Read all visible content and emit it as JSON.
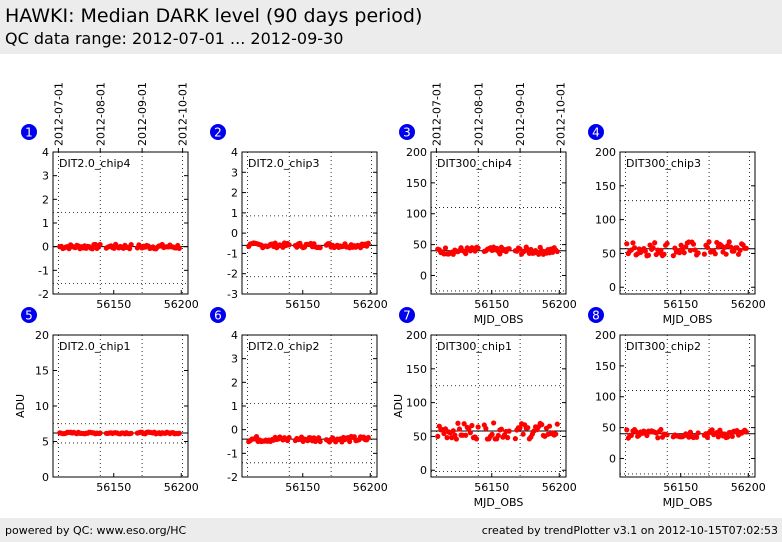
{
  "header": {
    "title": "HAWKI: Median DARK level (90 days period)",
    "subtitle": "QC data range: 2012-07-01 ... 2012-09-30"
  },
  "footer": {
    "left": "powered by QC: www.eso.org/HC",
    "right": "created by trendPlotter v3.1 on 2012-10-15T07:02:53"
  },
  "colors": {
    "points": "#ff0000",
    "badge": "#0000ee",
    "median_line": "#000000"
  },
  "top_date_ticks": [
    "2012-07-01",
    "2012-08-01",
    "2012-09-01",
    "2012-10-01"
  ],
  "chart_data": [
    {
      "type": "scatter",
      "badge": "1",
      "label": "DIT2.0_chip4",
      "xlim": [
        56105,
        56205
      ],
      "ylim": [
        -2,
        4
      ],
      "yticks": [
        "-2",
        "-1",
        "0",
        "1",
        "2",
        "3",
        "4"
      ],
      "xticks": [
        "56150",
        "56200"
      ],
      "xlabel": "",
      "ylabel": "",
      "median": 0.0,
      "limits": [
        1.45,
        -1.55
      ],
      "spread": 0.1,
      "has_date_axis": true
    },
    {
      "type": "scatter",
      "badge": "2",
      "label": "DIT2.0_chip3",
      "xlim": [
        56105,
        56205
      ],
      "ylim": [
        -3,
        4
      ],
      "yticks": [
        "-3",
        "-2",
        "-1",
        "0",
        "1",
        "2",
        "3",
        "4"
      ],
      "xticks": [
        "56150",
        "56200"
      ],
      "xlabel": "",
      "ylabel": "",
      "median": -0.6,
      "limits": [
        0.85,
        -2.15
      ],
      "spread": 0.12,
      "has_date_axis": false
    },
    {
      "type": "scatter",
      "badge": "3",
      "label": "DIT300_chip4",
      "xlim": [
        56105,
        56205
      ],
      "ylim": [
        -30,
        200
      ],
      "yticks": [
        "0",
        "50",
        "100",
        "150",
        "200"
      ],
      "xticks": [
        "56150",
        "56200"
      ],
      "xlabel": "MJD_OBS",
      "ylabel": "",
      "median": 40,
      "limits": [
        110,
        -25
      ],
      "spread": 6,
      "has_date_axis": true
    },
    {
      "type": "scatter",
      "badge": "4",
      "label": "DIT300_chip3",
      "xlim": [
        56105,
        56205
      ],
      "ylim": [
        -10,
        200
      ],
      "yticks": [
        "0",
        "50",
        "100",
        "150",
        "200"
      ],
      "xticks": [
        "56150",
        "56200"
      ],
      "xlabel": "MJD_OBS",
      "ylabel": "",
      "median": 57,
      "limits": [
        128,
        -5
      ],
      "spread": 11,
      "has_date_axis": false
    },
    {
      "type": "scatter",
      "badge": "5",
      "label": "DIT2.0_chip1",
      "xlim": [
        56105,
        56205
      ],
      "ylim": [
        0,
        20
      ],
      "yticks": [
        "0",
        "5",
        "10",
        "15",
        "20"
      ],
      "xticks": [
        "56150",
        "56200"
      ],
      "xlabel": "",
      "ylabel": "ADU",
      "median": 6.2,
      "limits": [
        7.5,
        4.8
      ],
      "spread": 0.12,
      "has_date_axis": false
    },
    {
      "type": "scatter",
      "badge": "6",
      "label": "DIT2.0_chip2",
      "xlim": [
        56105,
        56205
      ],
      "ylim": [
        -2,
        4
      ],
      "yticks": [
        "-2",
        "-1",
        "0",
        "1",
        "2",
        "3",
        "4"
      ],
      "xticks": [
        "56150",
        "56200"
      ],
      "xlabel": "",
      "ylabel": "",
      "median": -0.4,
      "limits": [
        1.1,
        -1.4
      ],
      "spread": 0.12,
      "has_date_axis": false
    },
    {
      "type": "scatter",
      "badge": "7",
      "label": "DIT300_chip1",
      "xlim": [
        56105,
        56205
      ],
      "ylim": [
        -10,
        200
      ],
      "yticks": [
        "0",
        "50",
        "100",
        "150",
        "200"
      ],
      "xticks": [
        "56150",
        "56200"
      ],
      "xlabel": "MJD_OBS",
      "ylabel": "ADU",
      "median": 58,
      "limits": [
        125,
        -2
      ],
      "spread": 12,
      "has_date_axis": false
    },
    {
      "type": "scatter",
      "badge": "8",
      "label": "DIT300_chip2",
      "xlim": [
        56105,
        56205
      ],
      "ylim": [
        -30,
        200
      ],
      "yticks": [
        "0",
        "50",
        "100",
        "150",
        "200"
      ],
      "xticks": [
        "56150",
        "56200"
      ],
      "xlabel": "MJD_OBS",
      "ylabel": "",
      "median": 40,
      "limits": [
        110,
        -25
      ],
      "spread": 7,
      "has_date_axis": false
    }
  ]
}
